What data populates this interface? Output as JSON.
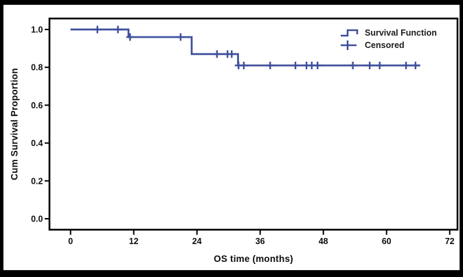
{
  "figure": {
    "background": "#ffffff",
    "frame_color": "#000000"
  },
  "colors": {
    "line": "#3E4F9C",
    "axis": "#000000",
    "tick_text": "#0d0d0d",
    "legend_text": "#1c1c1c"
  },
  "chart_data": {
    "type": "line",
    "subtype": "kaplan-meier-step-survival",
    "title": "",
    "xlabel": "OS time (months)",
    "ylabel": "Cum Survival Proportion",
    "x_ticks": [
      0,
      12,
      24,
      36,
      48,
      60,
      72
    ],
    "y_ticks": [
      {
        "value": 0.0,
        "label": "0.0"
      },
      {
        "value": 0.2,
        "label": "0.2"
      },
      {
        "value": 0.4,
        "label": "0.4"
      },
      {
        "value": 0.6,
        "label": "0.6"
      },
      {
        "value": 0.8,
        "label": "0.8"
      },
      {
        "value": 1.0,
        "label": "1.0"
      }
    ],
    "xlim": [
      0,
      72
    ],
    "ylim": [
      0,
      1.05
    ],
    "grid": false,
    "legend_position": "top-right-inside",
    "series": [
      {
        "name": "Survival Function",
        "steps": [
          {
            "t": 0,
            "s": 1.0
          },
          {
            "t": 11,
            "s": 0.96
          },
          {
            "t": 23,
            "s": 0.87
          },
          {
            "t": 31.8,
            "s": 0.81
          }
        ],
        "end_t": 66.4
      }
    ],
    "censored": [
      {
        "t": 5.1,
        "s": 1.0
      },
      {
        "t": 9.0,
        "s": 1.0
      },
      {
        "t": 11.3,
        "s": 0.96
      },
      {
        "t": 20.9,
        "s": 0.96
      },
      {
        "t": 27.8,
        "s": 0.87
      },
      {
        "t": 29.8,
        "s": 0.87
      },
      {
        "t": 30.6,
        "s": 0.87
      },
      {
        "t": 31.9,
        "s": 0.81
      },
      {
        "t": 32.9,
        "s": 0.81
      },
      {
        "t": 37.9,
        "s": 0.81
      },
      {
        "t": 42.7,
        "s": 0.81
      },
      {
        "t": 44.8,
        "s": 0.81
      },
      {
        "t": 45.8,
        "s": 0.81
      },
      {
        "t": 46.9,
        "s": 0.81
      },
      {
        "t": 53.6,
        "s": 0.81
      },
      {
        "t": 56.8,
        "s": 0.81
      },
      {
        "t": 58.7,
        "s": 0.81
      },
      {
        "t": 63.7,
        "s": 0.81
      },
      {
        "t": 65.5,
        "s": 0.81
      }
    ],
    "legend": [
      {
        "label": "Survival Function",
        "symbol": "step-line"
      },
      {
        "label": "Censored",
        "symbol": "plus"
      }
    ]
  }
}
